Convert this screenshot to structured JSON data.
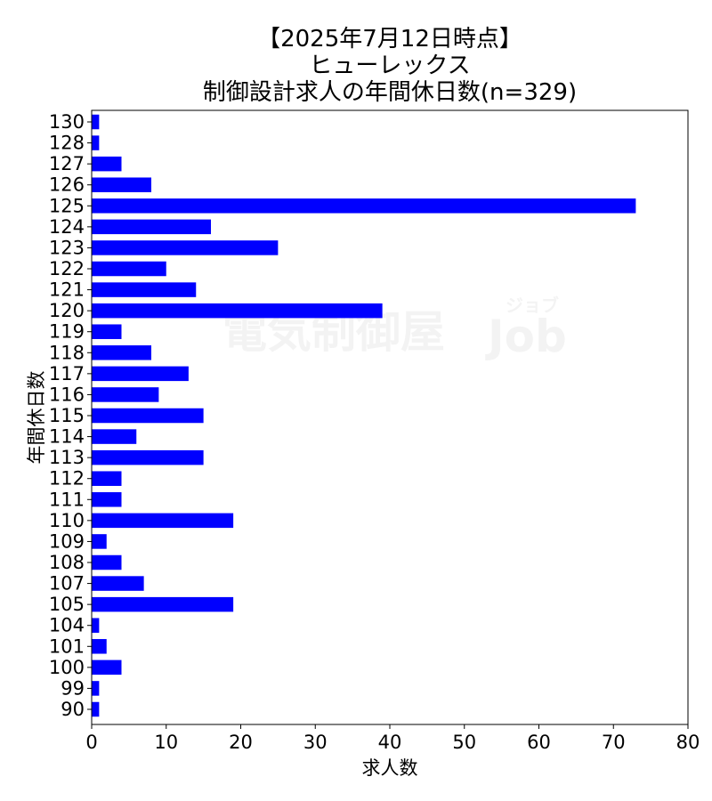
{
  "chart_data": {
    "type": "bar",
    "orientation": "horizontal",
    "title_lines": [
      "【2025年7月12日時点】",
      "ヒューレックス",
      "制御設計求人の年間休日数(n=329)"
    ],
    "xlabel": "求人数",
    "ylabel": "年間休日数",
    "xlim": [
      0,
      80
    ],
    "x_ticks": [
      0,
      10,
      20,
      30,
      40,
      50,
      60,
      70,
      80
    ],
    "categories": [
      "90",
      "99",
      "100",
      "101",
      "104",
      "105",
      "107",
      "108",
      "109",
      "110",
      "111",
      "112",
      "113",
      "114",
      "115",
      "116",
      "117",
      "118",
      "119",
      "120",
      "121",
      "122",
      "123",
      "124",
      "125",
      "126",
      "127",
      "128",
      "130"
    ],
    "values": [
      1,
      1,
      4,
      2,
      1,
      19,
      7,
      4,
      2,
      19,
      4,
      4,
      15,
      6,
      15,
      9,
      13,
      8,
      4,
      39,
      14,
      10,
      25,
      16,
      73,
      8,
      4,
      1,
      1
    ],
    "bar_color": "#0000ff",
    "grid": false,
    "legend": "none"
  },
  "watermark": {
    "main": "電気制御屋",
    "brand": "Job",
    "kana": "ジョブ"
  }
}
